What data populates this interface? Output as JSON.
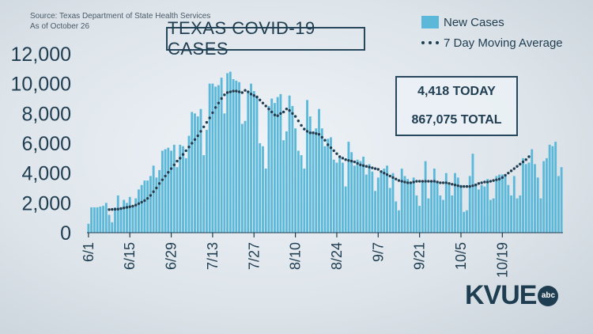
{
  "source": {
    "line1": "Source: Texas Department of State Health Services",
    "line2": "As of October 26"
  },
  "logo": {
    "text": "KVUE",
    "badge": "abc"
  },
  "colors": {
    "bars": "#5cb8d9",
    "average": "#1f3d50",
    "text": "#1f3d50"
  },
  "chart_data": {
    "type": "bar",
    "title": "TEXAS COVID-19 CASES",
    "stats": {
      "today": "4,418 TODAY",
      "total": "867,075 TOTAL"
    },
    "ylim": [
      0,
      12000
    ],
    "yticks": [
      "0",
      "2,000",
      "4,000",
      "6,000",
      "8,000",
      "10,000",
      "12,000"
    ],
    "xtick_labels": [
      "6/1",
      "6/15",
      "6/29",
      "7/13",
      "7/27",
      "8/10",
      "8/24",
      "9/7",
      "9/21",
      "10/5",
      "10/19"
    ],
    "x_start": "6/1",
    "legend_position": "top-right",
    "grid": false,
    "series": [
      {
        "name": "New Cases",
        "type": "bar",
        "values": [
          600,
          1700,
          1700,
          1700,
          1750,
          1800,
          2000,
          1200,
          700,
          1700,
          2500,
          1700,
          2200,
          2000,
          2400,
          1700,
          2300,
          2900,
          3200,
          3500,
          3500,
          3800,
          4500,
          3700,
          4200,
          5500,
          5600,
          5700,
          5500,
          5900,
          4400,
          5900,
          5800,
          5000,
          6500,
          8100,
          8000,
          7800,
          8300,
          5200,
          6900,
          10000,
          10000,
          9800,
          9900,
          10400,
          8000,
          10700,
          10800,
          10300,
          10200,
          10100,
          7300,
          7500,
          9400,
          10000,
          9500,
          9200,
          6000,
          5800,
          4300,
          8500,
          9000,
          8700,
          9100,
          9300,
          6200,
          6800,
          9200,
          8500,
          7000,
          5500,
          5200,
          4300,
          8900,
          7800,
          6800,
          7000,
          8300,
          7000,
          5800,
          6300,
          6400,
          4900,
          4700,
          5100,
          4700,
          3100,
          6100,
          5400,
          4500,
          4900,
          4800,
          5100,
          3900,
          4600,
          4100,
          2800,
          3700,
          4100,
          4300,
          4500,
          3000,
          4000,
          2100,
          1500,
          4300,
          3800,
          3600,
          3400,
          3700,
          2500,
          1800,
          3500,
          4800,
          2300,
          3500,
          4300,
          3400,
          2500,
          2200,
          4000,
          3200,
          2500,
          4000,
          3700,
          3200,
          1400,
          1500,
          3800,
          5300,
          3300,
          2900,
          3200,
          3100,
          3600,
          2200,
          2300,
          3800,
          3900,
          3900,
          3800,
          3200,
          2500,
          3800,
          2300,
          2500,
          5000,
          4600,
          4700,
          5600,
          4600,
          3700,
          2300,
          4800,
          5000,
          5900,
          5800,
          6100,
          3800,
          4400
        ]
      },
      {
        "name": "7 Day Moving Average",
        "type": "line",
        "style": "dotted",
        "start_day": 7,
        "values": [
          1550,
          1560,
          1570,
          1580,
          1620,
          1660,
          1700,
          1740,
          1780,
          1850,
          1950,
          2050,
          2150,
          2300,
          2500,
          2750,
          3000,
          3300,
          3550,
          3800,
          4050,
          4300,
          4550,
          4800,
          5000,
          5250,
          5500,
          5750,
          6000,
          6250,
          6500,
          6800,
          7100,
          7400,
          7700,
          8050,
          8400,
          8700,
          9000,
          9250,
          9400,
          9450,
          9500,
          9500,
          9450,
          9400,
          9550,
          9450,
          9300,
          9200,
          9100,
          8900,
          8700,
          8500,
          8300,
          8100,
          7900,
          7850,
          8000,
          8100,
          8300,
          8200,
          8000,
          7800,
          7500,
          7200,
          6950,
          6800,
          6700,
          6700,
          6650,
          6600,
          6400,
          6200,
          5900,
          5700,
          5500,
          5300,
          5100,
          5000,
          4900,
          4850,
          4800,
          4750,
          4650,
          4550,
          4500,
          4450,
          4400,
          4350,
          4300,
          4250,
          4100,
          4000,
          3900,
          3800,
          3700,
          3600,
          3500,
          3450,
          3400,
          3350,
          3350,
          3400,
          3450,
          3450,
          3450,
          3450,
          3450,
          3450,
          3450,
          3400,
          3350,
          3350,
          3350,
          3300,
          3250,
          3200,
          3150,
          3100,
          3100,
          3100,
          3100,
          3150,
          3200,
          3300,
          3350,
          3400,
          3400,
          3450,
          3500,
          3550,
          3600,
          3700,
          3850,
          4000,
          4150,
          4300,
          4450,
          4600,
          4750,
          4900,
          5100
        ]
      }
    ]
  }
}
